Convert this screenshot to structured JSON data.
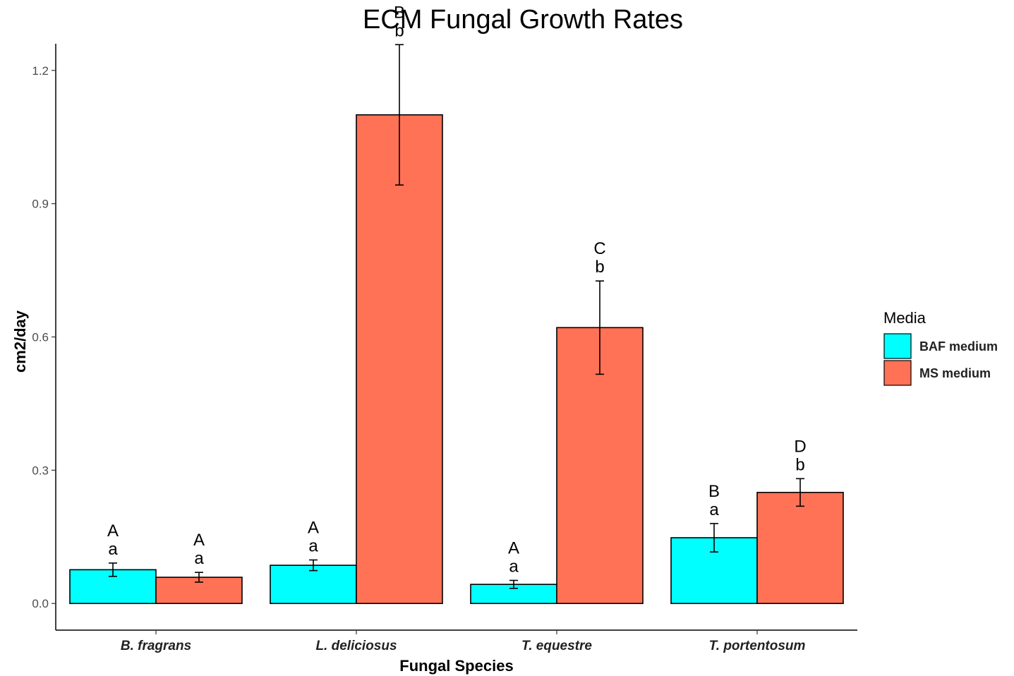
{
  "chart_data": {
    "type": "bar",
    "title": "ECM Fungal Growth Rates",
    "xlabel": "Fungal Species",
    "ylabel": "cm2/day",
    "categories": [
      "B. fragrans",
      "L. deliciosus",
      "T. equestre",
      "T. portentosum"
    ],
    "ylim": [
      -0.06,
      1.26
    ],
    "yticks": [
      0.0,
      0.3,
      0.6,
      0.9,
      1.2
    ],
    "ytick_labels": [
      "0.0",
      "0.3",
      "0.6",
      "0.9",
      "1.2"
    ],
    "grid": false,
    "legend": {
      "title": "Media",
      "position": "right"
    },
    "series": [
      {
        "name": "BAF medium",
        "color": "#00FFFF",
        "values": [
          0.076,
          0.086,
          0.043,
          0.148
        ],
        "errors": [
          0.015,
          0.012,
          0.009,
          0.032
        ],
        "upper_letters": [
          "A",
          "A",
          "A",
          "B"
        ],
        "lower_letters": [
          "a",
          "a",
          "a",
          "a"
        ]
      },
      {
        "name": "MS medium",
        "color": "#FF7256",
        "values": [
          0.059,
          1.1,
          0.621,
          0.25
        ],
        "errors": [
          0.011,
          0.158,
          0.105,
          0.031
        ],
        "upper_letters": [
          "A",
          "B",
          "C",
          "D"
        ],
        "lower_letters": [
          "a",
          "b",
          "b",
          "b"
        ]
      }
    ]
  }
}
